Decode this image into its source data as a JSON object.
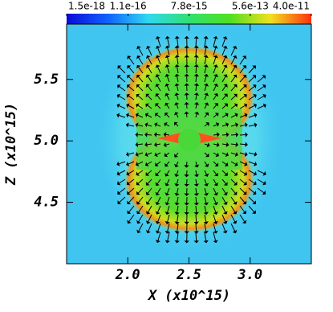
{
  "chart_data": {
    "type": "heatmap",
    "xlabel": "X (x10^15)",
    "ylabel": "Z (x10^15)",
    "xlim": [
      1.5,
      3.5
    ],
    "xticks": [
      {
        "value": 2.0,
        "label": "2.0"
      },
      {
        "value": 2.5,
        "label": "2.5"
      },
      {
        "value": 3.0,
        "label": "3.0"
      }
    ],
    "ylim": [
      4.0,
      5.95
    ],
    "yticks": [
      {
        "value": 4.5,
        "label": "4.5"
      },
      {
        "value": 5.0,
        "label": "5.0"
      },
      {
        "value": 5.5,
        "label": "5.5"
      }
    ],
    "colorbar": {
      "log": true,
      "lim": [
        1.5e-18,
        4e-11
      ],
      "ticks": [
        {
          "value": 1.5e-18,
          "label": "1.5e-18"
        },
        {
          "value": 1.1e-16,
          "label": "1.1e-16"
        },
        {
          "value": 7.8e-15,
          "label": "7.8e-15"
        },
        {
          "value": 5.6e-13,
          "label": "5.6e-13"
        },
        {
          "value": 4e-11,
          "label": "4.0e-11"
        }
      ],
      "colors": [
        "#0a0ad8",
        "#1060ff",
        "#30d8f0",
        "#30e070",
        "#50e020",
        "#f0e020",
        "#ff3010"
      ]
    }
  }
}
